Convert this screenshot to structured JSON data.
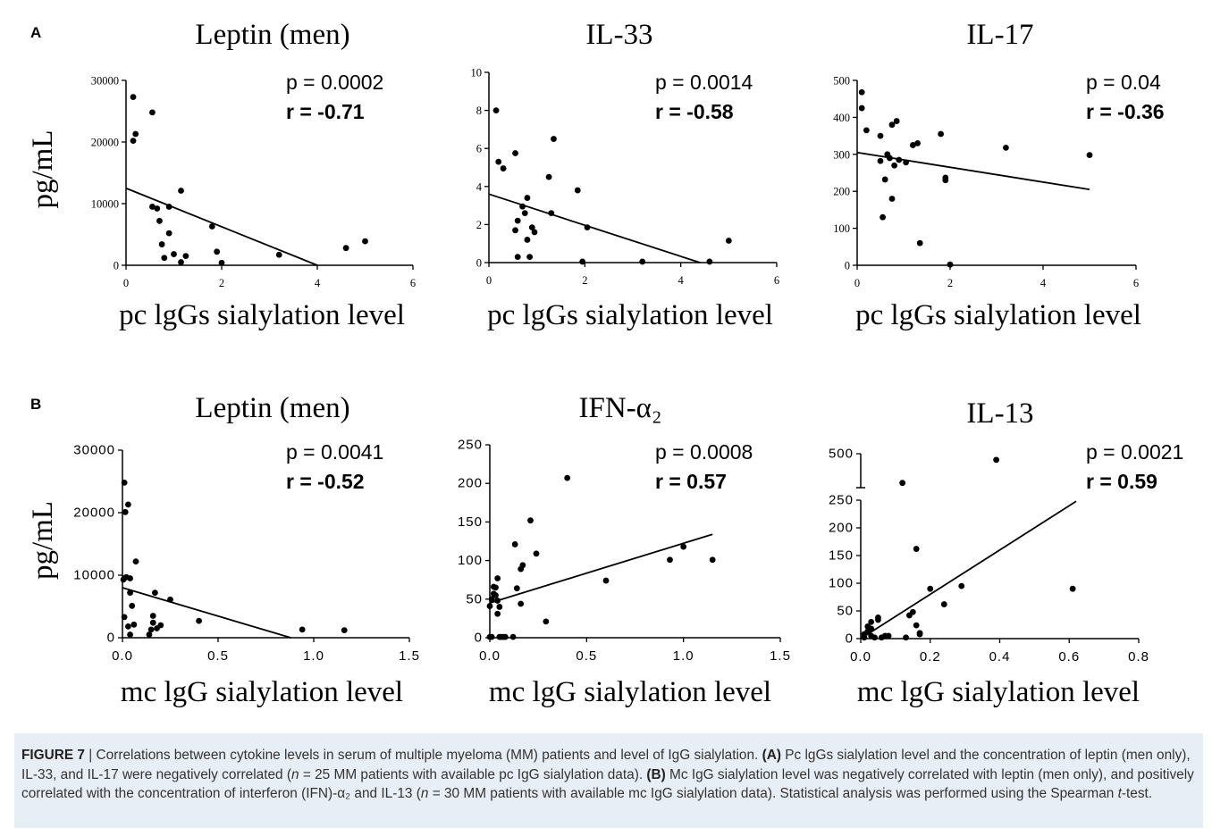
{
  "panels": [
    {
      "letter": "A"
    },
    {
      "letter": "B"
    }
  ],
  "chart_data": [
    {
      "type": "scatter",
      "panel": "A",
      "title": "Leptin (men)",
      "xlabel": "pc lgGs sialylation level",
      "ylabel": "pg/mL",
      "xlim": [
        0,
        6
      ],
      "ylim": [
        0,
        30000
      ],
      "xticks": [
        0,
        2,
        4,
        6
      ],
      "xtick_labels": [
        "0",
        "2",
        "4",
        "6"
      ],
      "yticks": [
        0,
        10000,
        20000,
        30000
      ],
      "ytick_labels": [
        "0",
        "10000",
        "20000",
        "30000"
      ],
      "p_text": "p = 0.0002",
      "r_text": "r = -0.71",
      "points": [
        [
          0.15,
          27300
        ],
        [
          0.15,
          20200
        ],
        [
          0.2,
          21300
        ],
        [
          0.55,
          24800
        ],
        [
          0.55,
          9500
        ],
        [
          0.65,
          9200
        ],
        [
          0.7,
          7200
        ],
        [
          0.75,
          3400
        ],
        [
          0.8,
          1200
        ],
        [
          0.9,
          9500
        ],
        [
          0.9,
          5200
        ],
        [
          1.0,
          1800
        ],
        [
          1.15,
          12100
        ],
        [
          1.15,
          500
        ],
        [
          1.25,
          1500
        ],
        [
          1.8,
          6300
        ],
        [
          1.9,
          2200
        ],
        [
          2.0,
          400
        ],
        [
          3.2,
          1700
        ],
        [
          4.6,
          2800
        ],
        [
          5.0,
          3900
        ]
      ],
      "regression": [
        [
          0,
          12500
        ],
        [
          4.0,
          0
        ]
      ]
    },
    {
      "type": "scatter",
      "panel": "A",
      "title": "IL-33",
      "xlabel": "pc lgGs sialylation level",
      "ylabel": "",
      "xlim": [
        0,
        6
      ],
      "ylim": [
        0,
        10
      ],
      "xticks": [
        0,
        2,
        4,
        6
      ],
      "xtick_labels": [
        "0",
        "2",
        "4",
        "6"
      ],
      "yticks": [
        0,
        2,
        4,
        6,
        8,
        10
      ],
      "ytick_labels": [
        "0",
        "2",
        "4",
        "6",
        "8",
        "10"
      ],
      "p_text": "p = 0.0014",
      "r_text": "r = -0.58",
      "points": [
        [
          0.15,
          8.0
        ],
        [
          0.2,
          5.3
        ],
        [
          0.3,
          4.95
        ],
        [
          0.55,
          5.75
        ],
        [
          0.55,
          1.7
        ],
        [
          0.6,
          2.2
        ],
        [
          0.6,
          0.3
        ],
        [
          0.7,
          2.95
        ],
        [
          0.75,
          2.6
        ],
        [
          0.8,
          3.4
        ],
        [
          0.8,
          1.2
        ],
        [
          0.85,
          0.3
        ],
        [
          0.9,
          1.85
        ],
        [
          0.95,
          1.6
        ],
        [
          1.25,
          4.5
        ],
        [
          1.3,
          2.6
        ],
        [
          1.35,
          6.5
        ],
        [
          1.85,
          3.8
        ],
        [
          1.95,
          0.05
        ],
        [
          2.05,
          1.85
        ],
        [
          3.2,
          0.05
        ],
        [
          4.6,
          0.05
        ],
        [
          5.0,
          1.15
        ]
      ],
      "regression": [
        [
          0,
          3.6
        ],
        [
          4.4,
          0
        ]
      ]
    },
    {
      "type": "scatter",
      "panel": "A",
      "title": "IL-17",
      "xlabel": "pc lgGs sialylation level",
      "ylabel": "",
      "xlim": [
        0,
        6
      ],
      "ylim": [
        0,
        500
      ],
      "xticks": [
        0,
        2,
        4,
        6
      ],
      "xtick_labels": [
        "0",
        "2",
        "4",
        "6"
      ],
      "yticks": [
        0,
        100,
        200,
        300,
        400,
        500
      ],
      "ytick_labels": [
        "0",
        "100",
        "200",
        "300",
        "400",
        "500"
      ],
      "p_text": "p = 0.04",
      "r_text": "r = -0.36",
      "points": [
        [
          0.1,
          468
        ],
        [
          0.1,
          425
        ],
        [
          0.2,
          365
        ],
        [
          0.5,
          350
        ],
        [
          0.5,
          282
        ],
        [
          0.55,
          130
        ],
        [
          0.6,
          232
        ],
        [
          0.65,
          300
        ],
        [
          0.7,
          290
        ],
        [
          0.75,
          380
        ],
        [
          0.75,
          180
        ],
        [
          0.8,
          270
        ],
        [
          0.85,
          390
        ],
        [
          0.9,
          285
        ],
        [
          1.05,
          278
        ],
        [
          1.2,
          325
        ],
        [
          1.3,
          330
        ],
        [
          1.35,
          60
        ],
        [
          1.8,
          355
        ],
        [
          1.9,
          237
        ],
        [
          1.9,
          230
        ],
        [
          2.0,
          2
        ],
        [
          3.2,
          318
        ],
        [
          5.0,
          298
        ]
      ],
      "regression": [
        [
          0,
          305
        ],
        [
          5.0,
          205
        ]
      ]
    },
    {
      "type": "scatter",
      "panel": "B",
      "title": "Leptin (men)",
      "xlabel": "mc lgG sialylation level",
      "ylabel": "pg/mL",
      "xlim": [
        0,
        1.5
      ],
      "ylim": [
        0,
        30000
      ],
      "xticks": [
        0,
        0.5,
        1.0,
        1.5
      ],
      "xtick_labels": [
        "0.0",
        "0.5",
        "1.0",
        "1.5"
      ],
      "yticks": [
        0,
        10000,
        20000,
        30000
      ],
      "ytick_labels": [
        "0",
        "10000",
        "20000",
        "30000"
      ],
      "p_text": "p = 0.0041",
      "r_text": "r = -0.52",
      "points": [
        [
          0.01,
          24800
        ],
        [
          0.015,
          20100
        ],
        [
          0.03,
          21300
        ],
        [
          0.01,
          9500
        ],
        [
          0.02,
          9700
        ],
        [
          0.04,
          9500
        ],
        [
          0.005,
          9300
        ],
        [
          0.01,
          3300
        ],
        [
          0.03,
          1800
        ],
        [
          0.04,
          7200
        ],
        [
          0.05,
          5100
        ],
        [
          0.06,
          2100
        ],
        [
          0.07,
          12200
        ],
        [
          0.04,
          500
        ],
        [
          0.14,
          500
        ],
        [
          0.15,
          1300
        ],
        [
          0.16,
          2400
        ],
        [
          0.16,
          3500
        ],
        [
          0.17,
          7200
        ],
        [
          0.18,
          1500
        ],
        [
          0.2,
          2000
        ],
        [
          0.25,
          6100
        ],
        [
          0.4,
          2700
        ],
        [
          0.94,
          1300
        ],
        [
          1.16,
          1200
        ]
      ],
      "regression": [
        [
          0,
          8000
        ],
        [
          0.88,
          0
        ]
      ]
    },
    {
      "type": "scatter",
      "panel": "B",
      "title": "IFN-α₂",
      "xlabel": "mc lgG sialylation level",
      "ylabel": "",
      "xlim": [
        0,
        1.5
      ],
      "ylim": [
        0,
        250
      ],
      "xticks": [
        0,
        0.5,
        1.0,
        1.5
      ],
      "xtick_labels": [
        "0.0",
        "0.5",
        "1.0",
        "1.5"
      ],
      "yticks": [
        0,
        50,
        100,
        150,
        200,
        250
      ],
      "ytick_labels": [
        "0",
        "50",
        "100",
        "150",
        "200",
        "250"
      ],
      "p_text": "p = 0.0008",
      "r_text": "r = 0.57",
      "points": [
        [
          0.0,
          41
        ],
        [
          0.01,
          50
        ],
        [
          0.02,
          57
        ],
        [
          0.02,
          66
        ],
        [
          0.03,
          65
        ],
        [
          0.03,
          55
        ],
        [
          0.04,
          77
        ],
        [
          0.04,
          48
        ],
        [
          0.05,
          40
        ],
        [
          0.04,
          31
        ],
        [
          0.05,
          1
        ],
        [
          0.06,
          1
        ],
        [
          0.07,
          1
        ],
        [
          0.08,
          1
        ],
        [
          0.01,
          1
        ],
        [
          0.0,
          1
        ],
        [
          0.12,
          1
        ],
        [
          0.13,
          121
        ],
        [
          0.14,
          64
        ],
        [
          0.16,
          89
        ],
        [
          0.17,
          94
        ],
        [
          0.16,
          44
        ],
        [
          0.21,
          152
        ],
        [
          0.24,
          109
        ],
        [
          0.29,
          21
        ],
        [
          0.4,
          207
        ],
        [
          0.6,
          74
        ],
        [
          0.93,
          101
        ],
        [
          1.0,
          118
        ],
        [
          1.15,
          101
        ]
      ],
      "regression": [
        [
          0,
          45
        ],
        [
          1.15,
          134
        ]
      ]
    },
    {
      "type": "scatter",
      "panel": "B",
      "title": "IL-13",
      "xlabel": "mc lgG sialylation level",
      "ylabel": "",
      "xlim": [
        0,
        0.8
      ],
      "ylim": [
        0,
        250
      ],
      "axis_break": true,
      "break_segment": {
        "range": [
          250,
          500
        ],
        "ticks": [
          500
        ],
        "tick_labels": [
          "500"
        ]
      },
      "xticks": [
        0,
        0.2,
        0.4,
        0.6,
        0.8
      ],
      "xtick_labels": [
        "0.0",
        "0.2",
        "0.4",
        "0.6",
        "0.8"
      ],
      "yticks": [
        0,
        50,
        100,
        150,
        200,
        250
      ],
      "ytick_labels": [
        "0",
        "50",
        "100",
        "150",
        "200",
        "250"
      ],
      "p_text": "p = 0.0021",
      "r_text": "r = 0.59",
      "points": [
        [
          0.01,
          2
        ],
        [
          0.01,
          8
        ],
        [
          0.02,
          13
        ],
        [
          0.02,
          22
        ],
        [
          0.03,
          18
        ],
        [
          0.03,
          5
        ],
        [
          0.03,
          30
        ],
        [
          0.04,
          2
        ],
        [
          0.05,
          34
        ],
        [
          0.05,
          38
        ],
        [
          0.06,
          2
        ],
        [
          0.07,
          5
        ],
        [
          0.08,
          5
        ],
        [
          0.12,
          285
        ],
        [
          0.13,
          2
        ],
        [
          0.14,
          42
        ],
        [
          0.15,
          48
        ],
        [
          0.16,
          162
        ],
        [
          0.16,
          24
        ],
        [
          0.17,
          8
        ],
        [
          0.17,
          10
        ],
        [
          0.2,
          90
        ],
        [
          0.24,
          62
        ],
        [
          0.29,
          95
        ],
        [
          0.39,
          455
        ],
        [
          0.61,
          90
        ]
      ],
      "regression": [
        [
          0,
          0
        ],
        [
          0.62,
          248
        ]
      ]
    }
  ],
  "caption": {
    "label": "FIGURE 7",
    "sep": " | ",
    "text_1": "Correlations between cytokine levels in serum of multiple myeloma (MM) patients and level of IgG sialylation. ",
    "tag_a": "(A)",
    "text_2": " Pc lgGs sialylation level and the concentration of leptin (men only), IL-33, and IL-17 were negatively correlated (",
    "n_a": "n",
    "text_3": " = 25 MM patients with available pc IgG sialylation data). ",
    "tag_b": "(B)",
    "text_4": " Mc IgG sialylation level was negatively correlated with leptin (men only), and positively correlated with the concentration of interferon (IFN)-α₂ and IL-13 (",
    "n_b": "n",
    "text_5": " = 30 MM patients with available mc IgG sialylation data). Statistical analysis was performed using the Spearman ",
    "t_it": "t",
    "text_6": "-test."
  }
}
